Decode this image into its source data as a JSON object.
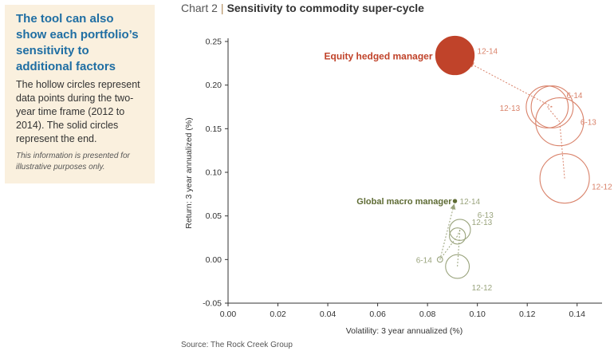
{
  "sidebar": {
    "heading": "The tool can also show each portfolio’s sensitivity to additional factors",
    "body": "The hollow circles represent data points during the two-year time frame (2012 to 2014). The solid circles represent the end.",
    "note": "This information is presented for illustrative purposes only."
  },
  "chart": {
    "number": "Chart 2",
    "separator": "|",
    "title": "Sensitivity to commodity super-cycle"
  },
  "source": "Source: The Rock Creek Group",
  "colors": {
    "equity": "#c0432a",
    "equity_light": "#d9826a",
    "macro": "#5e6b34",
    "macro_light": "#9aa47d",
    "axis": "#333333"
  },
  "chart_data": {
    "type": "scatter",
    "xlabel": "Volatility: 3 year annualized (%)",
    "ylabel": "Return: 3 year annualized (%)",
    "xlim": [
      0,
      0.15
    ],
    "ylim": [
      -0.05,
      0.25
    ],
    "xticks": [
      "0.00",
      "0.02",
      "0.04",
      "0.06",
      "0.08",
      "0.10",
      "0.12",
      "0.14"
    ],
    "yticks": [
      "-0.05",
      "0.00",
      "0.05",
      "0.10",
      "0.15",
      "0.20",
      "0.25"
    ],
    "grid": false,
    "series": [
      {
        "name": "Equity hedged manager",
        "color": "#c0432a",
        "points": [
          {
            "label": "12-12",
            "x": 0.135,
            "y": 0.093,
            "size": 1.0,
            "solid": false
          },
          {
            "label": "12-13",
            "x": 0.128,
            "y": 0.175,
            "size": 0.85,
            "solid": false
          },
          {
            "label": "6-14",
            "x": 0.13,
            "y": 0.175,
            "size": 0.85,
            "solid": false
          },
          {
            "label": "6-13",
            "x": 0.133,
            "y": 0.158,
            "size": 0.97,
            "solid": false
          },
          {
            "label": "12-14",
            "x": 0.091,
            "y": 0.234,
            "size": 0.78,
            "solid": true
          }
        ]
      },
      {
        "name": "Global macro manager",
        "color": "#5e6b34",
        "points": [
          {
            "label": "12-12",
            "x": 0.092,
            "y": -0.008,
            "size": 0.62,
            "solid": false
          },
          {
            "label": "12-13",
            "x": 0.092,
            "y": 0.027,
            "size": 0.42,
            "solid": false
          },
          {
            "label": "6-13",
            "x": 0.093,
            "y": 0.034,
            "size": 0.55,
            "solid": false
          },
          {
            "label": "6-14",
            "x": 0.085,
            "y": 0.0,
            "size": 0.14,
            "solid": false
          },
          {
            "label": "12-14",
            "x": 0.091,
            "y": 0.067,
            "size": 0.05,
            "solid": true
          }
        ]
      }
    ]
  }
}
